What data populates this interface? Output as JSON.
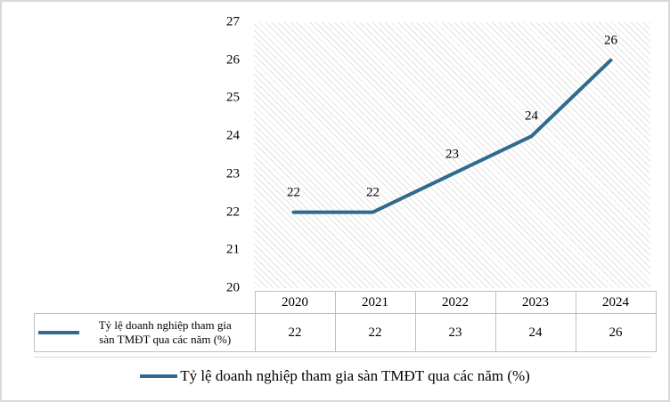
{
  "chart_data": {
    "type": "line",
    "categories": [
      "2020",
      "2021",
      "2022",
      "2023",
      "2024"
    ],
    "series": [
      {
        "name": "Tỷ lệ doanh nghiệp tham gia sàn TMĐT qua các năm (%)",
        "values": [
          22,
          22,
          23,
          24,
          26
        ]
      }
    ],
    "yticks": [
      20,
      21,
      22,
      23,
      24,
      25,
      26,
      27
    ],
    "ylim": [
      20,
      27
    ],
    "grid": false,
    "data_labels": [
      22,
      22,
      23,
      24,
      26
    ],
    "legend_position": "bottom",
    "line_color": "#2e6b8d",
    "plot_fill": "light diagonal hatch pattern on white"
  },
  "data_table": {
    "row_label_line1": "Tỷ lệ doanh nghiệp tham gia",
    "row_label_line2": "sàn TMĐT  qua các năm (%)",
    "columns": [
      "2020",
      "2021",
      "2022",
      "2023",
      "2024"
    ],
    "values": [
      "22",
      "22",
      "23",
      "24",
      "26"
    ]
  },
  "legend": {
    "label": "Tỷ lệ doanh nghiệp tham gia sàn TMĐT qua các năm (%)"
  },
  "colors": {
    "series": "#2e6b8d",
    "table_border": "#bfbfbf",
    "canvas_border": "#d9d9d9",
    "hatch": "#e3e3e3"
  }
}
